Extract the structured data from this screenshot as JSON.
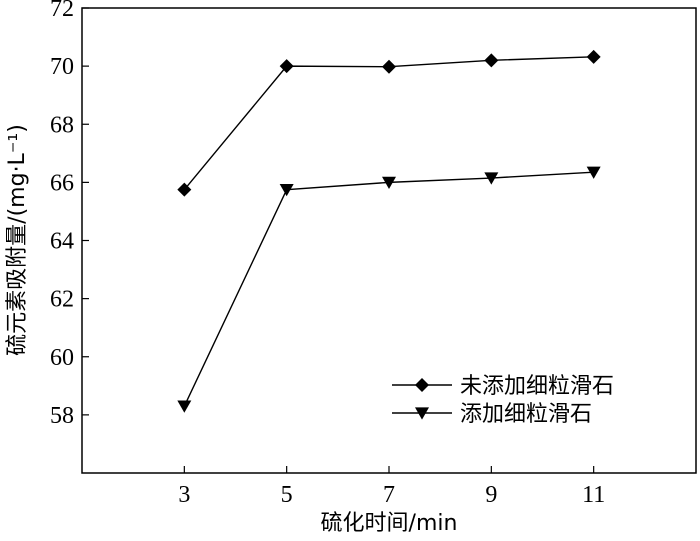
{
  "chart_data": {
    "type": "line",
    "x": [
      3,
      5,
      7,
      9,
      11
    ],
    "series": [
      {
        "name": "未添加细粒滑石",
        "marker": "diamond",
        "values": [
          65.75,
          70.0,
          69.98,
          70.2,
          70.32
        ]
      },
      {
        "name": "添加细粒滑石",
        "marker": "triangle-down",
        "values": [
          58.3,
          65.75,
          66.0,
          66.15,
          66.35
        ]
      }
    ],
    "xlabel": "硫化时间/min",
    "ylabel": "硫元素吸附量/(mg·L⁻¹)",
    "xlim": [
      1,
      13
    ],
    "ylim": [
      56,
      72
    ],
    "xticks": [
      3,
      5,
      7,
      9,
      11
    ],
    "yticks": [
      58,
      60,
      62,
      64,
      66,
      68,
      70,
      72
    ],
    "grid": false,
    "legend_position": "lower-right",
    "line_color": "#000000"
  }
}
